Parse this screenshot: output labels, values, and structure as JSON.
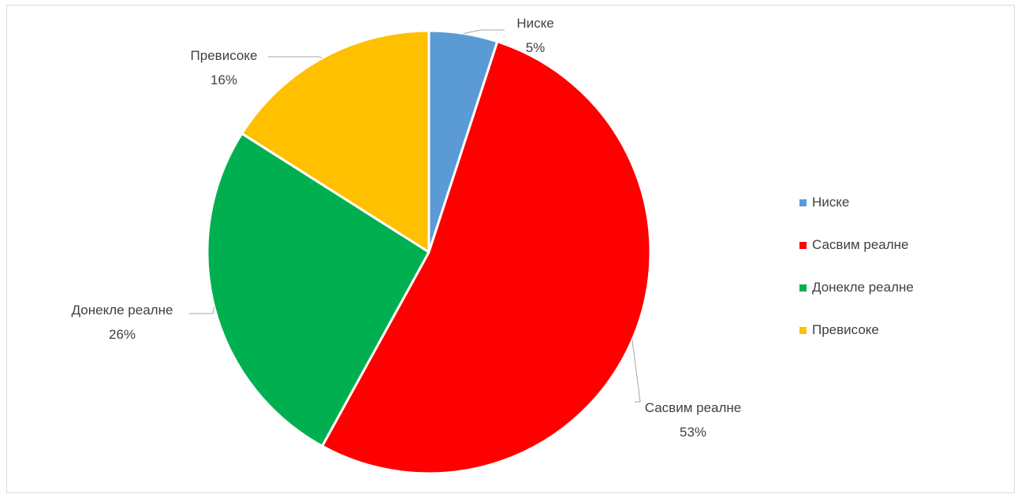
{
  "chart_data": {
    "type": "pie",
    "title": "",
    "categories": [
      "Ниске",
      "Сасвим реалне",
      "Донекле реалне",
      "Превисоке"
    ],
    "values": [
      5,
      53,
      26,
      16
    ],
    "value_labels": [
      "5%",
      "53%",
      "26%",
      "16%"
    ],
    "colors": [
      "#5b9bd5",
      "#ff0000",
      "#00b050",
      "#ffc000"
    ],
    "legend_position": "right",
    "start_angle_deg": 0,
    "direction": "clockwise"
  },
  "legend": {
    "items": [
      {
        "label": "Ниске",
        "color": "#5b9bd5"
      },
      {
        "label": "Сасвим реалне",
        "color": "#ff0000"
      },
      {
        "label": "Донекле реалне",
        "color": "#00b050"
      },
      {
        "label": "Превисоке",
        "color": "#ffc000"
      }
    ]
  }
}
